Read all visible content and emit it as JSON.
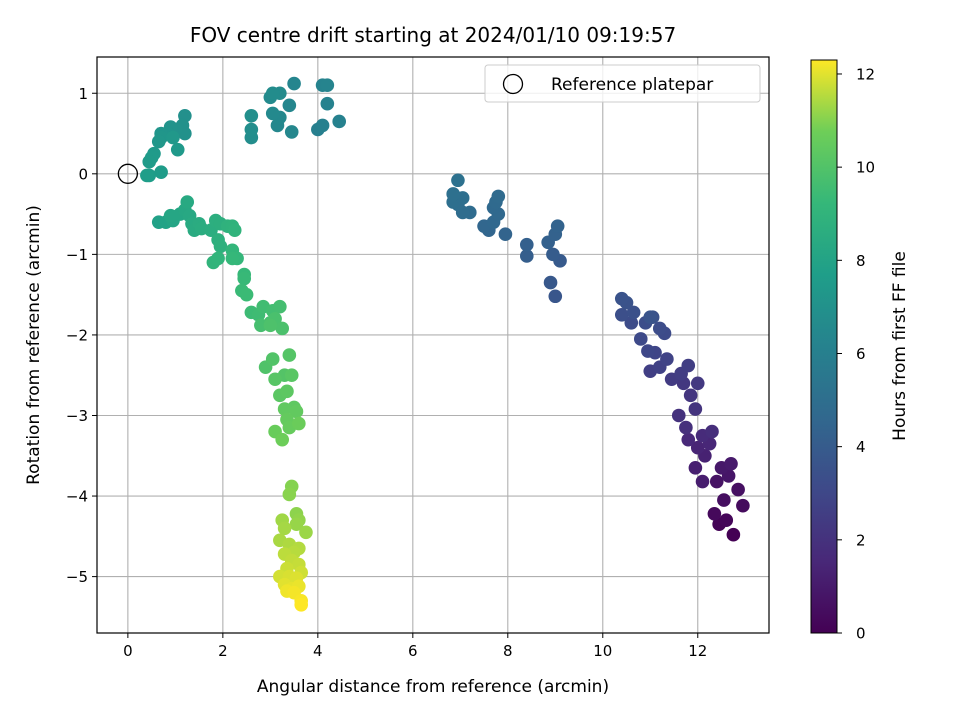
{
  "chart_data": {
    "type": "scatter",
    "title": "FOV centre drift starting at 2024/01/10 09:19:57",
    "xlabel": "Angular distance from reference (arcmin)",
    "ylabel": "Rotation from reference (arcmin)",
    "xlim": [
      -0.65,
      13.5
    ],
    "ylim": [
      -5.7,
      1.45
    ],
    "xticks": [
      0,
      2,
      4,
      6,
      8,
      10,
      12
    ],
    "yticks": [
      1,
      0,
      -1,
      -2,
      -3,
      -4,
      -5
    ],
    "xtick_labels": [
      "0",
      "2",
      "4",
      "6",
      "8",
      "10",
      "12"
    ],
    "ytick_labels": [
      "1",
      "0",
      "−1",
      "−2",
      "−3",
      "−4",
      "−5"
    ],
    "grid": true,
    "legend": {
      "placement": "top-right",
      "entries": [
        "Reference platepar"
      ]
    },
    "reference_point": {
      "x": 0,
      "y": 0
    },
    "colorbar": {
      "label": "Hours from first FF file",
      "min": 0,
      "max": 12.3,
      "ticks": [
        0,
        2,
        4,
        6,
        8,
        10,
        12
      ],
      "tick_labels": [
        "0",
        "2",
        "4",
        "6",
        "8",
        "10",
        "12"
      ],
      "colormap": "viridis"
    },
    "points": [
      {
        "x": 12.75,
        "y": -4.48,
        "h": 0.0
      },
      {
        "x": 12.45,
        "y": -4.35,
        "h": 0.1
      },
      {
        "x": 12.6,
        "y": -4.3,
        "h": 0.2
      },
      {
        "x": 12.35,
        "y": -4.22,
        "h": 0.3
      },
      {
        "x": 12.95,
        "y": -4.12,
        "h": 0.4
      },
      {
        "x": 12.55,
        "y": -4.05,
        "h": 0.5
      },
      {
        "x": 12.85,
        "y": -3.92,
        "h": 0.6
      },
      {
        "x": 12.4,
        "y": -3.82,
        "h": 0.7
      },
      {
        "x": 12.65,
        "y": -3.75,
        "h": 0.8
      },
      {
        "x": 12.5,
        "y": -3.65,
        "h": 0.9
      },
      {
        "x": 12.7,
        "y": -3.6,
        "h": 1.0
      },
      {
        "x": 12.1,
        "y": -3.82,
        "h": 1.1
      },
      {
        "x": 11.95,
        "y": -3.65,
        "h": 1.2
      },
      {
        "x": 12.15,
        "y": -3.5,
        "h": 1.3
      },
      {
        "x": 12.0,
        "y": -3.4,
        "h": 1.4
      },
      {
        "x": 12.25,
        "y": -3.35,
        "h": 1.5
      },
      {
        "x": 11.8,
        "y": -3.3,
        "h": 1.6
      },
      {
        "x": 12.1,
        "y": -3.25,
        "h": 1.7
      },
      {
        "x": 12.3,
        "y": -3.2,
        "h": 1.8
      },
      {
        "x": 11.75,
        "y": -3.15,
        "h": 1.9
      },
      {
        "x": 11.6,
        "y": -3.0,
        "h": 2.0
      },
      {
        "x": 11.95,
        "y": -2.92,
        "h": 2.1
      },
      {
        "x": 11.85,
        "y": -2.75,
        "h": 2.2
      },
      {
        "x": 11.7,
        "y": -2.6,
        "h": 2.3
      },
      {
        "x": 12.0,
        "y": -2.6,
        "h": 2.35
      },
      {
        "x": 11.45,
        "y": -2.55,
        "h": 2.4
      },
      {
        "x": 11.65,
        "y": -2.48,
        "h": 2.5
      },
      {
        "x": 11.8,
        "y": -2.38,
        "h": 2.55
      },
      {
        "x": 11.0,
        "y": -2.45,
        "h": 2.6
      },
      {
        "x": 11.2,
        "y": -2.4,
        "h": 2.7
      },
      {
        "x": 11.35,
        "y": -2.3,
        "h": 2.8
      },
      {
        "x": 11.1,
        "y": -2.22,
        "h": 2.9
      },
      {
        "x": 10.95,
        "y": -2.2,
        "h": 3.0
      },
      {
        "x": 10.8,
        "y": -2.05,
        "h": 3.1
      },
      {
        "x": 11.3,
        "y": -1.98,
        "h": 3.15
      },
      {
        "x": 10.6,
        "y": -1.85,
        "h": 3.2
      },
      {
        "x": 11.2,
        "y": -1.92,
        "h": 3.25
      },
      {
        "x": 10.9,
        "y": -1.85,
        "h": 3.3
      },
      {
        "x": 10.4,
        "y": -1.75,
        "h": 3.35
      },
      {
        "x": 10.65,
        "y": -1.72,
        "h": 3.4
      },
      {
        "x": 11.05,
        "y": -1.78,
        "h": 3.45
      },
      {
        "x": 10.5,
        "y": -1.6,
        "h": 3.5
      },
      {
        "x": 10.4,
        "y": -1.55,
        "h": 3.55
      },
      {
        "x": 11.0,
        "y": -1.78,
        "h": 3.6
      },
      {
        "x": 9.0,
        "y": -1.52,
        "h": 3.7
      },
      {
        "x": 8.9,
        "y": -1.35,
        "h": 3.8
      },
      {
        "x": 9.1,
        "y": -1.08,
        "h": 3.9
      },
      {
        "x": 8.95,
        "y": -1.0,
        "h": 4.0
      },
      {
        "x": 8.4,
        "y": -1.02,
        "h": 4.1
      },
      {
        "x": 8.4,
        "y": -0.88,
        "h": 4.2
      },
      {
        "x": 8.85,
        "y": -0.85,
        "h": 4.25
      },
      {
        "x": 9.0,
        "y": -0.75,
        "h": 4.3
      },
      {
        "x": 9.05,
        "y": -0.65,
        "h": 4.35
      },
      {
        "x": 7.95,
        "y": -0.75,
        "h": 4.4
      },
      {
        "x": 7.6,
        "y": -0.7,
        "h": 4.5
      },
      {
        "x": 7.5,
        "y": -0.65,
        "h": 4.55
      },
      {
        "x": 7.7,
        "y": -0.6,
        "h": 4.6
      },
      {
        "x": 7.8,
        "y": -0.5,
        "h": 4.65
      },
      {
        "x": 7.7,
        "y": -0.42,
        "h": 4.7
      },
      {
        "x": 7.75,
        "y": -0.35,
        "h": 4.75
      },
      {
        "x": 7.8,
        "y": -0.28,
        "h": 4.8
      },
      {
        "x": 7.2,
        "y": -0.48,
        "h": 4.85
      },
      {
        "x": 7.05,
        "y": -0.48,
        "h": 4.9
      },
      {
        "x": 6.95,
        "y": -0.38,
        "h": 4.95
      },
      {
        "x": 6.85,
        "y": -0.35,
        "h": 5.0
      },
      {
        "x": 7.05,
        "y": -0.3,
        "h": 5.05
      },
      {
        "x": 6.85,
        "y": -0.25,
        "h": 5.1
      },
      {
        "x": 6.95,
        "y": -0.08,
        "h": 5.15
      },
      {
        "x": 4.0,
        "y": 0.55,
        "h": 6.0
      },
      {
        "x": 4.1,
        "y": 0.6,
        "h": 6.05
      },
      {
        "x": 4.45,
        "y": 0.65,
        "h": 6.1
      },
      {
        "x": 4.2,
        "y": 0.87,
        "h": 6.15
      },
      {
        "x": 4.1,
        "y": 1.1,
        "h": 6.2
      },
      {
        "x": 4.2,
        "y": 1.1,
        "h": 6.25
      },
      {
        "x": 3.5,
        "y": 1.12,
        "h": 6.3
      },
      {
        "x": 3.4,
        "y": 0.85,
        "h": 6.35
      },
      {
        "x": 3.45,
        "y": 0.52,
        "h": 6.4
      },
      {
        "x": 3.15,
        "y": 0.6,
        "h": 6.45
      },
      {
        "x": 3.2,
        "y": 0.7,
        "h": 6.5
      },
      {
        "x": 3.05,
        "y": 0.75,
        "h": 6.55
      },
      {
        "x": 3.0,
        "y": 0.95,
        "h": 6.6
      },
      {
        "x": 3.2,
        "y": 1.0,
        "h": 6.65
      },
      {
        "x": 3.05,
        "y": 1.0,
        "h": 6.7
      },
      {
        "x": 2.6,
        "y": 0.45,
        "h": 6.75
      },
      {
        "x": 2.6,
        "y": 0.55,
        "h": 6.8
      },
      {
        "x": 2.6,
        "y": 0.72,
        "h": 6.85
      },
      {
        "x": 1.2,
        "y": 0.72,
        "h": 6.9
      },
      {
        "x": 1.15,
        "y": 0.6,
        "h": 6.95
      },
      {
        "x": 1.2,
        "y": 0.5,
        "h": 7.0
      },
      {
        "x": 1.0,
        "y": 0.55,
        "h": 7.05
      },
      {
        "x": 0.9,
        "y": 0.58,
        "h": 7.1
      },
      {
        "x": 0.85,
        "y": 0.5,
        "h": 7.15
      },
      {
        "x": 0.7,
        "y": 0.5,
        "h": 7.2
      },
      {
        "x": 0.7,
        "y": 0.45,
        "h": 7.25
      },
      {
        "x": 0.65,
        "y": 0.4,
        "h": 7.3
      },
      {
        "x": 0.95,
        "y": 0.45,
        "h": 7.35
      },
      {
        "x": 1.05,
        "y": 0.3,
        "h": 7.4
      },
      {
        "x": 0.55,
        "y": 0.25,
        "h": 7.45
      },
      {
        "x": 0.5,
        "y": 0.2,
        "h": 7.5
      },
      {
        "x": 0.45,
        "y": 0.15,
        "h": 7.55
      },
      {
        "x": 0.7,
        "y": 0.02,
        "h": 7.6
      },
      {
        "x": 0.45,
        "y": -0.02,
        "h": 7.65
      },
      {
        "x": 0.4,
        "y": -0.02,
        "h": 7.7
      },
      {
        "x": 0.65,
        "y": -0.6,
        "h": 7.9
      },
      {
        "x": 0.8,
        "y": -0.6,
        "h": 8.0
      },
      {
        "x": 0.95,
        "y": -0.58,
        "h": 8.1
      },
      {
        "x": 0.9,
        "y": -0.52,
        "h": 8.15
      },
      {
        "x": 1.1,
        "y": -0.5,
        "h": 8.2
      },
      {
        "x": 1.2,
        "y": -0.45,
        "h": 8.25
      },
      {
        "x": 1.3,
        "y": -0.52,
        "h": 8.3
      },
      {
        "x": 1.25,
        "y": -0.35,
        "h": 8.35
      },
      {
        "x": 1.35,
        "y": -0.62,
        "h": 8.4
      },
      {
        "x": 1.4,
        "y": -0.7,
        "h": 8.45
      },
      {
        "x": 1.5,
        "y": -0.62,
        "h": 8.5
      },
      {
        "x": 1.55,
        "y": -0.68,
        "h": 8.55
      },
      {
        "x": 1.75,
        "y": -0.7,
        "h": 8.6
      },
      {
        "x": 1.85,
        "y": -0.58,
        "h": 8.65
      },
      {
        "x": 1.95,
        "y": -0.62,
        "h": 8.7
      },
      {
        "x": 1.9,
        "y": -0.82,
        "h": 8.75
      },
      {
        "x": 1.95,
        "y": -0.9,
        "h": 8.8
      },
      {
        "x": 2.1,
        "y": -0.65,
        "h": 8.85
      },
      {
        "x": 2.2,
        "y": -0.65,
        "h": 8.9
      },
      {
        "x": 2.25,
        "y": -0.7,
        "h": 8.95
      },
      {
        "x": 1.8,
        "y": -1.1,
        "h": 9.0
      },
      {
        "x": 1.9,
        "y": -1.05,
        "h": 9.05
      },
      {
        "x": 2.2,
        "y": -0.95,
        "h": 9.1
      },
      {
        "x": 2.3,
        "y": -1.05,
        "h": 9.15
      },
      {
        "x": 2.2,
        "y": -1.05,
        "h": 9.2
      },
      {
        "x": 2.45,
        "y": -1.25,
        "h": 9.25
      },
      {
        "x": 2.45,
        "y": -1.3,
        "h": 9.3
      },
      {
        "x": 2.4,
        "y": -1.45,
        "h": 9.35
      },
      {
        "x": 2.5,
        "y": -1.5,
        "h": 9.4
      },
      {
        "x": 2.6,
        "y": -1.72,
        "h": 9.45
      },
      {
        "x": 2.75,
        "y": -1.75,
        "h": 9.5
      },
      {
        "x": 2.85,
        "y": -1.65,
        "h": 9.55
      },
      {
        "x": 3.05,
        "y": -1.7,
        "h": 9.6
      },
      {
        "x": 3.2,
        "y": -1.65,
        "h": 9.65
      },
      {
        "x": 2.8,
        "y": -1.88,
        "h": 9.7
      },
      {
        "x": 3.0,
        "y": -1.85,
        "h": 9.75
      },
      {
        "x": 3.1,
        "y": -1.8,
        "h": 9.8
      },
      {
        "x": 3.25,
        "y": -1.92,
        "h": 9.85
      },
      {
        "x": 3.0,
        "y": -1.88,
        "h": 9.9
      },
      {
        "x": 2.9,
        "y": -2.4,
        "h": 9.95
      },
      {
        "x": 3.05,
        "y": -2.3,
        "h": 10.0
      },
      {
        "x": 3.3,
        "y": -2.5,
        "h": 10.05
      },
      {
        "x": 3.4,
        "y": -2.25,
        "h": 10.1
      },
      {
        "x": 3.1,
        "y": -2.55,
        "h": 10.15
      },
      {
        "x": 3.45,
        "y": -2.5,
        "h": 10.2
      },
      {
        "x": 3.2,
        "y": -2.75,
        "h": 10.25
      },
      {
        "x": 3.35,
        "y": -2.7,
        "h": 10.3
      },
      {
        "x": 3.5,
        "y": -2.9,
        "h": 10.35
      },
      {
        "x": 3.3,
        "y": -2.92,
        "h": 10.4
      },
      {
        "x": 3.55,
        "y": -2.95,
        "h": 10.45
      },
      {
        "x": 3.35,
        "y": -3.05,
        "h": 10.5
      },
      {
        "x": 3.4,
        "y": -3.15,
        "h": 10.55
      },
      {
        "x": 3.1,
        "y": -3.2,
        "h": 10.6
      },
      {
        "x": 3.6,
        "y": -3.1,
        "h": 10.65
      },
      {
        "x": 3.25,
        "y": -3.3,
        "h": 10.7
      },
      {
        "x": 3.45,
        "y": -3.88,
        "h": 11.0
      },
      {
        "x": 3.4,
        "y": -3.98,
        "h": 11.05
      },
      {
        "x": 3.55,
        "y": -4.22,
        "h": 11.1
      },
      {
        "x": 3.6,
        "y": -4.3,
        "h": 11.15
      },
      {
        "x": 3.55,
        "y": -4.35,
        "h": 11.2
      },
      {
        "x": 3.75,
        "y": -4.45,
        "h": 11.25
      },
      {
        "x": 3.25,
        "y": -4.3,
        "h": 11.3
      },
      {
        "x": 3.3,
        "y": -4.4,
        "h": 11.35
      },
      {
        "x": 3.2,
        "y": -4.55,
        "h": 11.4
      },
      {
        "x": 3.4,
        "y": -4.6,
        "h": 11.45
      },
      {
        "x": 3.6,
        "y": -4.65,
        "h": 11.5
      },
      {
        "x": 3.5,
        "y": -4.7,
        "h": 11.55
      },
      {
        "x": 3.3,
        "y": -4.72,
        "h": 11.6
      },
      {
        "x": 3.45,
        "y": -4.8,
        "h": 11.65
      },
      {
        "x": 3.6,
        "y": -4.85,
        "h": 11.7
      },
      {
        "x": 3.35,
        "y": -4.9,
        "h": 11.75
      },
      {
        "x": 3.65,
        "y": -4.95,
        "h": 11.8
      },
      {
        "x": 3.2,
        "y": -5.0,
        "h": 11.85
      },
      {
        "x": 3.4,
        "y": -5.0,
        "h": 11.9
      },
      {
        "x": 3.55,
        "y": -5.02,
        "h": 11.95
      },
      {
        "x": 3.3,
        "y": -5.1,
        "h": 12.0
      },
      {
        "x": 3.45,
        "y": -5.15,
        "h": 12.05
      },
      {
        "x": 3.6,
        "y": -5.12,
        "h": 12.1
      },
      {
        "x": 3.35,
        "y": -5.18,
        "h": 12.15
      },
      {
        "x": 3.5,
        "y": -5.2,
        "h": 12.2
      },
      {
        "x": 3.65,
        "y": -5.3,
        "h": 12.25
      },
      {
        "x": 3.65,
        "y": -5.35,
        "h": 12.3
      }
    ]
  }
}
